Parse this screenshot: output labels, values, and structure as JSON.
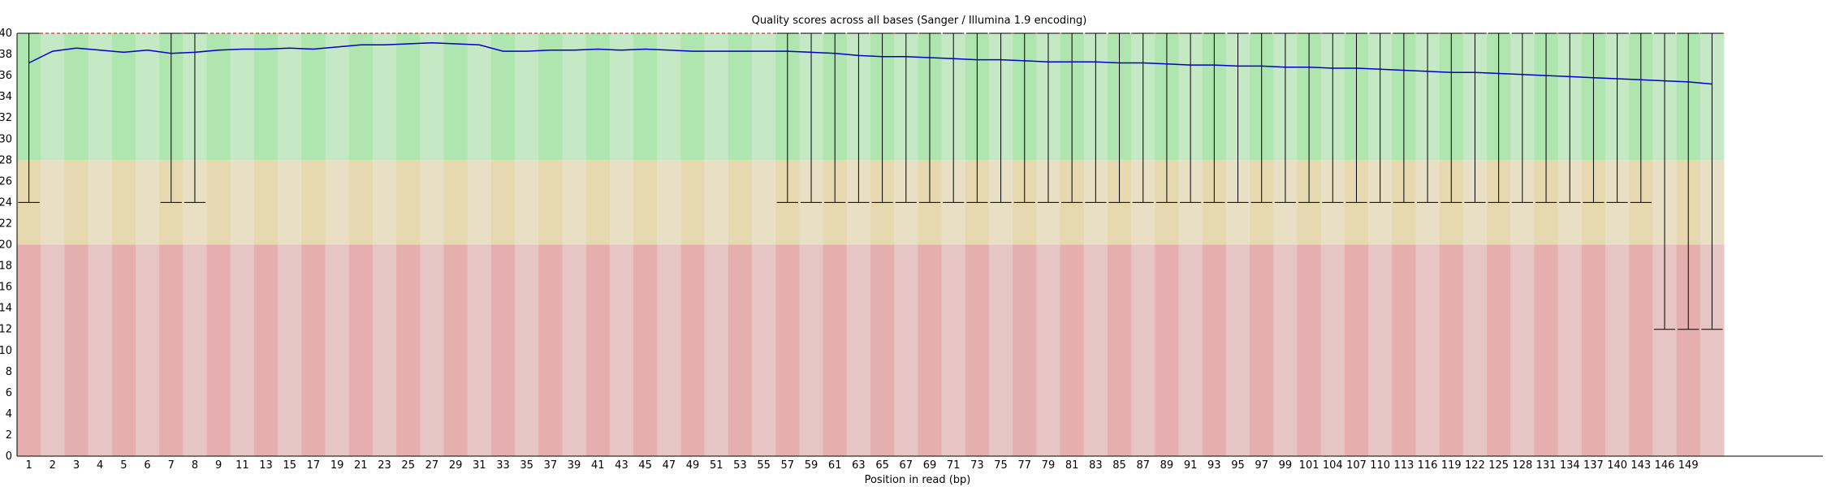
{
  "chart_data": {
    "type": "box",
    "title": "Quality scores across all bases (Sanger / Illumina 1.9 encoding)",
    "xlabel": "Position in read (bp)",
    "ylabel": "",
    "ylim": [
      0,
      40
    ],
    "yticks": [
      0,
      2,
      4,
      6,
      8,
      10,
      12,
      14,
      16,
      18,
      20,
      22,
      24,
      26,
      28,
      30,
      32,
      34,
      36,
      38,
      40
    ],
    "grid": false,
    "legend": "none",
    "quality_bands": [
      {
        "name": "poor",
        "from": 0,
        "to": 20
      },
      {
        "name": "reasonable",
        "from": 20,
        "to": 28
      },
      {
        "name": "good",
        "from": 28,
        "to": 40
      }
    ],
    "categories": [
      "1",
      "2",
      "3",
      "4",
      "5",
      "6",
      "7",
      "8",
      "9",
      "10-11",
      "12-13",
      "14-15",
      "16-17",
      "18-19",
      "20-21",
      "22-23",
      "24-25",
      "26-27",
      "28-29",
      "30-31",
      "32-33",
      "34-35",
      "36-37",
      "38-39",
      "40-41",
      "42-43",
      "44-45",
      "46-47",
      "48-49",
      "50-51",
      "52-53",
      "54-55",
      "56-57",
      "58-59",
      "60-61",
      "62-63",
      "64-65",
      "66-67",
      "68-69",
      "70-71",
      "72-73",
      "74-75",
      "76-77",
      "78-79",
      "80-81",
      "82-83",
      "84-85",
      "86-87",
      "88-89",
      "90-91",
      "92-93",
      "94-95",
      "96-97",
      "98-99",
      "100-101",
      "102-104",
      "105-107",
      "108-110",
      "111-113",
      "114-116",
      "117-119",
      "120-122",
      "123-125",
      "126-128",
      "129-131",
      "132-134",
      "135-137",
      "138-140",
      "141-143",
      "144-146",
      "147-149",
      "150-151"
    ],
    "xtick_labels": [
      "1",
      "2",
      "3",
      "4",
      "5",
      "6",
      "7",
      "8",
      "9",
      "11",
      "13",
      "15",
      "17",
      "19",
      "21",
      "23",
      "25",
      "27",
      "29",
      "31",
      "33",
      "35",
      "37",
      "39",
      "41",
      "43",
      "45",
      "47",
      "49",
      "51",
      "53",
      "55",
      "57",
      "59",
      "61",
      "63",
      "65",
      "67",
      "69",
      "71",
      "73",
      "75",
      "77",
      "79",
      "81",
      "83",
      "85",
      "87",
      "89",
      "91",
      "93",
      "95",
      "97",
      "99",
      "101",
      "104",
      "107",
      "110",
      "113",
      "116",
      "119",
      "122",
      "125",
      "128",
      "131",
      "134",
      "137",
      "140",
      "143",
      "146",
      "149",
      ""
    ],
    "series": [
      {
        "name": "",
        "type": "line",
        "values": [
          37.2,
          38.3,
          38.6,
          38.4,
          38.2,
          38.4,
          38.1,
          38.2,
          38.4,
          38.5,
          38.5,
          38.6,
          38.5,
          38.7,
          38.9,
          38.9,
          39.0,
          39.1,
          39.0,
          38.9,
          38.3,
          38.3,
          38.4,
          38.4,
          38.5,
          38.4,
          38.5,
          38.4,
          38.3,
          38.3,
          38.3,
          38.3,
          38.3,
          38.2,
          38.1,
          37.9,
          37.8,
          37.8,
          37.7,
          37.6,
          37.5,
          37.5,
          37.4,
          37.3,
          37.3,
          37.3,
          37.2,
          37.2,
          37.1,
          37.0,
          37.0,
          36.9,
          36.9,
          36.8,
          36.8,
          36.7,
          36.7,
          36.6,
          36.5,
          36.4,
          36.3,
          36.3,
          36.2,
          36.1,
          36.0,
          35.9,
          35.8,
          35.7,
          35.6,
          35.5,
          35.4,
          35.2
        ]
      }
    ],
    "whisker_low": [
      24,
      null,
      null,
      null,
      null,
      null,
      24,
      24,
      null,
      null,
      null,
      null,
      null,
      null,
      null,
      null,
      null,
      null,
      null,
      null,
      null,
      null,
      null,
      null,
      null,
      null,
      null,
      null,
      null,
      null,
      null,
      null,
      24,
      24,
      24,
      24,
      24,
      24,
      24,
      24,
      24,
      24,
      24,
      24,
      24,
      24,
      24,
      24,
      24,
      24,
      24,
      24,
      24,
      24,
      24,
      24,
      24,
      24,
      24,
      24,
      24,
      24,
      24,
      24,
      24,
      24,
      24,
      24,
      24,
      12,
      12,
      12
    ],
    "whisker_high": [
      40,
      null,
      null,
      null,
      null,
      null,
      40,
      40,
      null,
      null,
      null,
      null,
      null,
      null,
      null,
      null,
      null,
      null,
      null,
      null,
      null,
      null,
      null,
      null,
      null,
      null,
      null,
      null,
      null,
      null,
      null,
      null,
      40,
      40,
      40,
      40,
      40,
      40,
      40,
      40,
      40,
      40,
      40,
      40,
      40,
      40,
      40,
      40,
      40,
      40,
      40,
      40,
      40,
      40,
      40,
      40,
      40,
      40,
      40,
      40,
      40,
      40,
      40,
      40,
      40,
      40,
      40,
      40,
      40,
      40,
      40,
      40
    ],
    "colors": {
      "good_dark": "#afe6af",
      "good_light": "#c5e8c5",
      "ok_dark": "#e6d9af",
      "ok_light": "#e8dfc5",
      "bad_dark": "#e6afaf",
      "bad_light": "#e8c5c5",
      "mean_line": "#0000cc",
      "whisker": "#000000",
      "top_dashes": "#cc0000"
    }
  }
}
